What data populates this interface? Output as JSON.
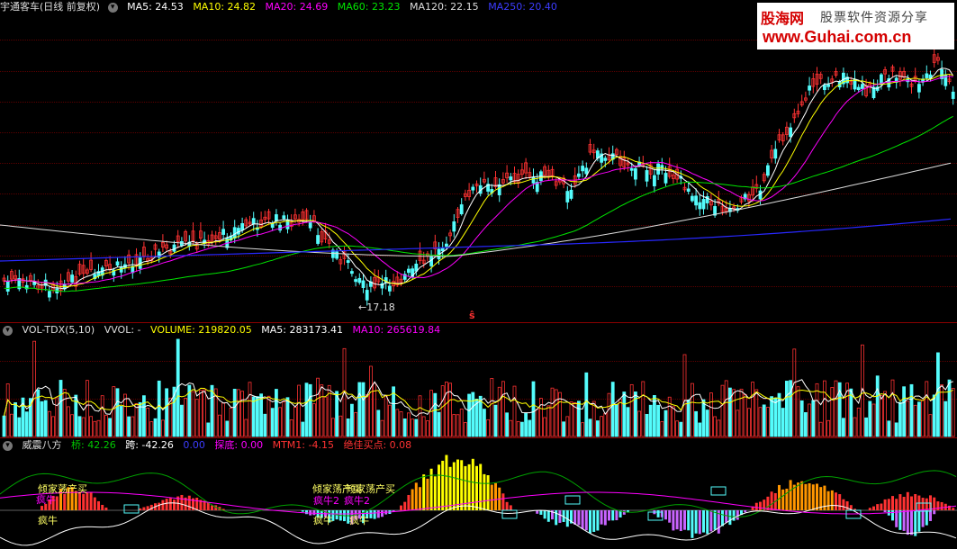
{
  "price_header": {
    "title": "宇通客车(日线 前复权)",
    "ma5": "MA5: 24.53",
    "ma10": "MA10: 24.82",
    "ma20": "MA20: 24.69",
    "ma60": "MA60: 23.23",
    "ma120": "MA120: 22.15",
    "ma250": "MA250: 20.40"
  },
  "price_annotations": {
    "low_label": "←17.18",
    "marker": "ŝ"
  },
  "volume_header": {
    "title": "VOL-TDX(5,10)",
    "vvol": "VVOL: -",
    "volume": "VOLUME: 219820.05",
    "ma5": "MA5: 283173.41",
    "ma10": "MA10: 265619.84"
  },
  "indicator_header": {
    "title": "威震八方",
    "qiao": "桥: 42.26",
    "kua": "跨: -42.26",
    "blank": "0.00",
    "tandi": "探底: 0.00",
    "mtm1": "MTM1: -4.15",
    "best_buy": "绝佳买点: 0.08"
  },
  "indicator_signals": {
    "sig1": "倾家荡产买",
    "sig1b": "疯牛",
    "sig2": "疯牛",
    "sig3": "倾家荡产买",
    "sig3b": "倾家荡产买",
    "sig4": "疯牛2",
    "sig5": "疯牛2",
    "sig6": "疯牛",
    "sig7": "疯牛"
  },
  "watermark": {
    "logo": "股海网",
    "tagline": "股票软件资源分享",
    "url": "www.Guhai.com.cn"
  },
  "colors": {
    "up": "#ff3232",
    "down": "#54fcfc",
    "ma5": "#ffffff",
    "ma10": "#ffff00",
    "ma20": "#ff00ff",
    "ma60": "#00e600",
    "ma120": "#dcdcdc",
    "ma250": "#2828ff"
  },
  "icons": {
    "menu": "chevron-down-icon"
  }
}
